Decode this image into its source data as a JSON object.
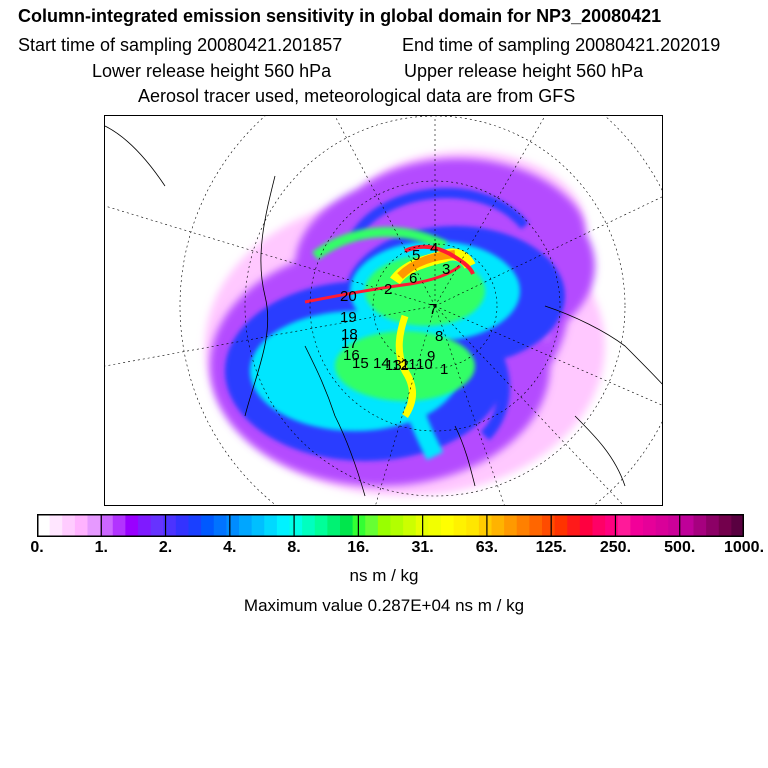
{
  "title": "Column-integrated emission sensitivity in global domain for NP3_20080421",
  "start_sampling": "Start time of sampling 20080421.201857",
  "end_sampling": "End time of sampling 20080421.202019",
  "lower_release": "Lower release height  560 hPa",
  "upper_release": "Upper release height  560 hPa",
  "tracer_note": "Aerosol tracer used, meteorological data are from GFS",
  "colorbar": {
    "tick_labels": [
      "0.",
      "1.",
      "2.",
      "4.",
      "8.",
      "16.",
      "31.",
      "63.",
      "125.",
      "250.",
      "500.",
      "1000."
    ],
    "unit_label": "ns m / kg",
    "colors": [
      "#ffffff",
      "#ffe6ff",
      "#ffccff",
      "#ffb3ff",
      "#e699ff",
      "#cc66ff",
      "#b233ff",
      "#9900ff",
      "#7f1aff",
      "#6633ff",
      "#4c33ff",
      "#3333ff",
      "#1a40ff",
      "#0059ff",
      "#0073ff",
      "#008cff",
      "#00a6ff",
      "#00bfff",
      "#00d9ff",
      "#00f2ff",
      "#00ffe6",
      "#00ffbf",
      "#00ff99",
      "#00f273",
      "#00e64c",
      "#33ff33",
      "#66ff33",
      "#99ff00",
      "#b2ff00",
      "#ccff00",
      "#e6ff00",
      "#f2ff00",
      "#ffff00",
      "#fff200",
      "#ffe600",
      "#ffcc00",
      "#ffb300",
      "#ff9900",
      "#ff8000",
      "#ff6600",
      "#ff4c00",
      "#ff3300",
      "#ff1a1a",
      "#ff0040",
      "#ff0066",
      "#ff0080",
      "#ff1a99",
      "#f20099",
      "#e60099",
      "#d90099",
      "#cc0099",
      "#bf0099",
      "#a6007f",
      "#8c0066",
      "#73004c",
      "#590040"
    ]
  },
  "max_value": "Maximum value  0.287E+04 ns m / kg",
  "map": {
    "plume_colors": {
      "outer": "#ffc8ff",
      "violet": "#b44cff",
      "blue": "#2a3cff",
      "cyan": "#00e6ff",
      "green": "#33ff66",
      "yellow": "#ffff00",
      "orange": "#ff9900",
      "red": "#ff1a33"
    },
    "markers": [
      "1",
      "2",
      "3",
      "4",
      "5",
      "6",
      "7",
      "8",
      "9",
      "10",
      "11",
      "12",
      "13",
      "14",
      "15",
      "16",
      "17",
      "18",
      "19",
      "20"
    ]
  }
}
